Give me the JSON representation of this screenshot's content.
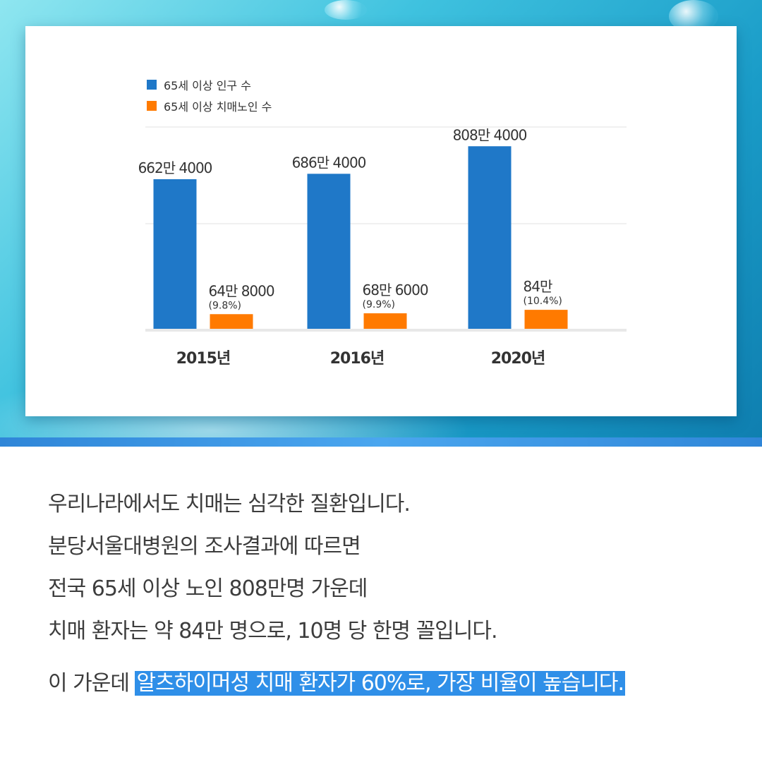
{
  "chart_data": {
    "type": "bar",
    "categories": [
      "2015년",
      "2016년",
      "2020년"
    ],
    "series": [
      {
        "name": "65세 이상 인구 수",
        "values": [
          6624000,
          6864000,
          8084000
        ],
        "labels": [
          "662만 4000",
          "686만 4000",
          "808만 4000"
        ],
        "color": "#1f78c8"
      },
      {
        "name": "65세 이상 치매노인 수",
        "values": [
          648000,
          686000,
          840000
        ],
        "labels": [
          "64만 8000",
          "68만 6000",
          "84만"
        ],
        "sublabels": [
          "(9.8%)",
          "(9.9%)",
          "(10.4%)"
        ],
        "color": "#ff7a00"
      }
    ],
    "grid": true,
    "legend": "top-left"
  },
  "text": {
    "lines": [
      "우리나라에서도 치매는 심각한 질환입니다.",
      "분당서울대병원의 조사결과에 따르면",
      "전국 65세 이상 노인 808만명 가운데",
      "치매 환자는 약 84만 명으로, 10명 당 한명 꼴입니다."
    ],
    "last_prefix": "이 가운데 ",
    "last_highlight": "알츠하이머성 치매 환자가 60%로, 가장 비율이 높습니다."
  },
  "colors": {
    "highlight": "#2f8fe8",
    "band": "#2f86d8"
  }
}
